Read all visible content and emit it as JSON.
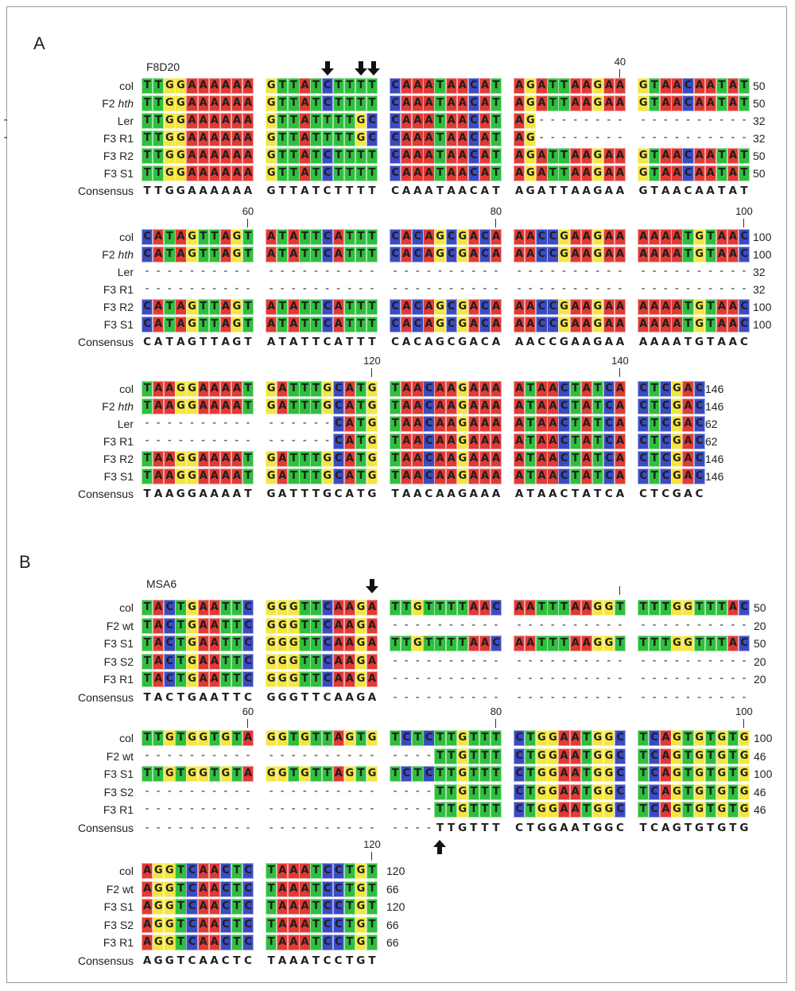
{
  "colors": {
    "A": "#e23a35",
    "T": "#2fbf3e",
    "G": "#f4e641",
    "C": "#3b4bc4"
  },
  "panel_a": {
    "letter": "A",
    "locus": "F8D20",
    "rows": [
      {
        "label": "col",
        "italic": "",
        "lines": [
          {
            "seq": "TTGGAAAAAAGTTATCTTTTCAAATAACATAGATTAAGAAGTAACAATAT",
            "count": "50"
          },
          {
            "seq": "CATAGTTAGTATATTCATTTCACAGCGACAAACCGAAGAAAAAATGTAAC",
            "count": "100"
          },
          {
            "seq": "TAAGGAAAATGATTTGCATGTAACAAGAAAATAACTATCACTCGAC",
            "count": "146"
          }
        ]
      },
      {
        "label": "F2 ",
        "italic": "hth",
        "lines": [
          {
            "seq": "TTGGAAAAAAGTTATCTTTTCAAATAACATAGATTAAGAAGTAACAATAT",
            "count": "50"
          },
          {
            "seq": "CATAGTTAGTATATTCATTTCACAGCGACAAACCGAAGAAAAAATGTAAC",
            "count": "100"
          },
          {
            "seq": "TAAGGAAAATGATTTGCATGTAACAAGAAAATAACTATCACTCGAC",
            "count": "146"
          }
        ]
      },
      {
        "label": "Ler",
        "italic": "",
        "lines": [
          {
            "seq": "TTGGAAAAAAGTTATTTTGCCAAATAACATAG--------------------",
            "count": "32"
          },
          {
            "seq": "--------------------------------------------------",
            "count": "32"
          },
          {
            "seq": "----------------CATGTAACAAGAAAATAACTATCACTCGAC",
            "count": "62"
          }
        ]
      },
      {
        "label": "F3 R1",
        "italic": "",
        "lines": [
          {
            "seq": "TTGGAAAAAAGTTATTTTGCCAAATAACATAG--------------------",
            "count": "32"
          },
          {
            "seq": "--------------------------------------------------",
            "count": "32"
          },
          {
            "seq": "----------------CATGTAACAAGAAAATAACTATCACTCGAC",
            "count": "62"
          }
        ]
      },
      {
        "label": "F3 R2",
        "italic": "",
        "lines": [
          {
            "seq": "TTGGAAAAAAGTTATCTTTTCAAATAACATAGATTAAGAAGTAACAATAT",
            "count": "50"
          },
          {
            "seq": "CATAGTTAGTATATTCATTTCACAGCGACAAACCGAAGAAAAAATGTAAC",
            "count": "100"
          },
          {
            "seq": "TAAGGAAAATGATTTGCATGTAACAAGAAAATAACTATCACTCGAC",
            "count": "146"
          }
        ]
      },
      {
        "label": "F3 S1",
        "italic": "",
        "lines": [
          {
            "seq": "TTGGAAAAAAGTTATCTTTTCAAATAACATAGATTAAGAAGTAACAATAT",
            "count": "50"
          },
          {
            "seq": "CATAGTTAGTATATTCATTTCACAGCGACAAACCGAAGAAAAAATGTAAC",
            "count": "100"
          },
          {
            "seq": "TAAGGAAAATGATTTGCATGTAACAAGAAAATAACTATCACTCGAC",
            "count": "146"
          }
        ]
      }
    ],
    "consensus_label": "Consensus",
    "consensus": [
      "TTGGAAAAAAGTTATCTTTTCAAATAACATAGATTAAGAAGTAACAATAT",
      "CATAGTTAGTATATTCATTTCACAGCGACAAACCGAAGAAAAAATGTAAC",
      "TAAGGAAAATGATTTGCATGTAACAAGAAAATAACTATCACTCGAC"
    ],
    "ruler": [
      [
        "40"
      ],
      [
        "60",
        "80",
        "100"
      ],
      [
        "120",
        "140"
      ]
    ],
    "ruler_positions": [
      [
        40
      ],
      [
        60,
        80,
        100
      ],
      [
        120,
        140
      ]
    ]
  },
  "panel_b": {
    "letter": "B",
    "locus": "MSA6",
    "rows": [
      {
        "label": "col",
        "italic": "",
        "lines": [
          {
            "seq": "TACTGAATTCGGGTTCAAGATTGTTTTAACAATTTAAGGTTTTGGTTTAC",
            "count": "50"
          },
          {
            "seq": "TTGTGGTGTAGGTGTTAGTGTCTCTTGTTTCTGGAATGGCTCAGTGTGTG",
            "count": "100"
          },
          {
            "seq": "AGGTCAACTCTAAATCCTGT",
            "count": "120"
          }
        ]
      },
      {
        "label": "F2 wt",
        "italic": "",
        "lines": [
          {
            "seq": "TACTGAATTCGGGTTCAAGA------------------------------",
            "count": "20"
          },
          {
            "seq": "------------------------TTGTTTCTGGAATGGCTCAGTGTGTG",
            "count": "46"
          },
          {
            "seq": "AGGTCAACTCTAAATCCTGT",
            "count": "66"
          }
        ]
      },
      {
        "label": "F3 S1",
        "italic": "",
        "lines": [
          {
            "seq": "TACTGAATTCGGGTTCAAGATTGTTTTAACAATTTAAGGTTTTGGTTTAC",
            "count": "50"
          },
          {
            "seq": "TTGTGGTGTAGGTGTTAGTGTCTCTTGTTTCTGGAATGGCTCAGTGTGTG",
            "count": "100"
          },
          {
            "seq": "AGGTCAACTCTAAATCCTGT",
            "count": "120"
          }
        ]
      },
      {
        "label": "F3 S2",
        "italic": "",
        "lines": [
          {
            "seq": "TACTGAATTCGGGTTCAAGA------------------------------",
            "count": "20"
          },
          {
            "seq": "------------------------TTGTTTCTGGAATGGCTCAGTGTGTG",
            "count": "46"
          },
          {
            "seq": "AGGTCAACTCTAAATCCTGT",
            "count": "66"
          }
        ]
      },
      {
        "label": "F3 R1",
        "italic": "",
        "lines": [
          {
            "seq": "TACTGAATTCGGGTTCAAGA------------------------------",
            "count": "20"
          },
          {
            "seq": "------------------------TTGTTTCTGGAATGGCTCAGTGTGTG",
            "count": "46"
          },
          {
            "seq": "AGGTCAACTCTAAATCCTGT",
            "count": "66"
          }
        ]
      }
    ],
    "consensus_label": "Consensus",
    "consensus": [
      "TACTGAATTCGGGTTCAAGA------------------------------",
      "------------------------TTGTTTCTGGAATGGCTCAGTGTGTG",
      "AGGTCAACTCTAAATCCTGT"
    ],
    "ruler": [
      [],
      [
        "60",
        "80",
        "100"
      ],
      [
        "120"
      ]
    ],
    "ruler_positions": [
      [],
      [
        60,
        80,
        100
      ],
      [
        120
      ]
    ],
    "plain_tick_positions": [
      40
    ]
  }
}
